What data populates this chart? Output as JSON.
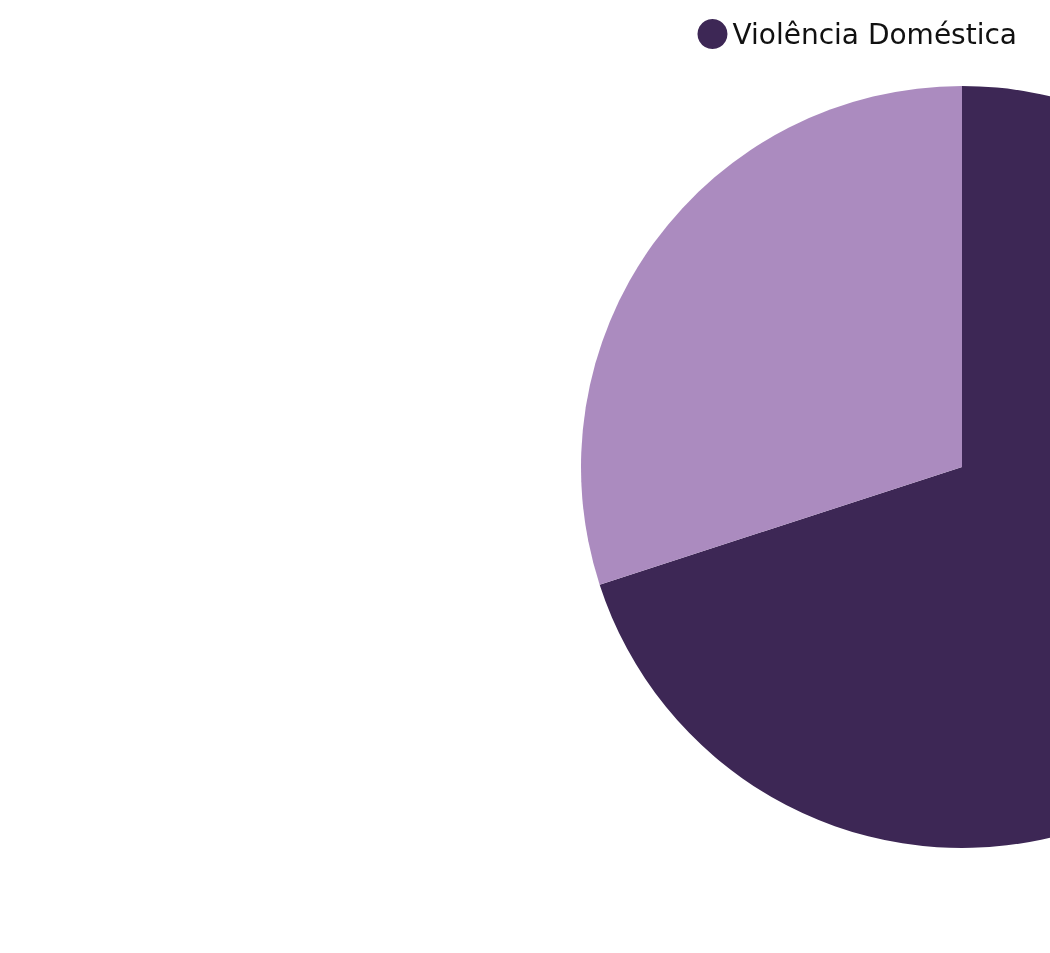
{
  "chart_data": {
    "type": "pie",
    "categories": [
      "Violência Doméstica",
      null
    ],
    "values": [
      70,
      30
    ],
    "colors": [
      "#3d2755",
      "#ab8bbf"
    ],
    "legend": "top left"
  }
}
